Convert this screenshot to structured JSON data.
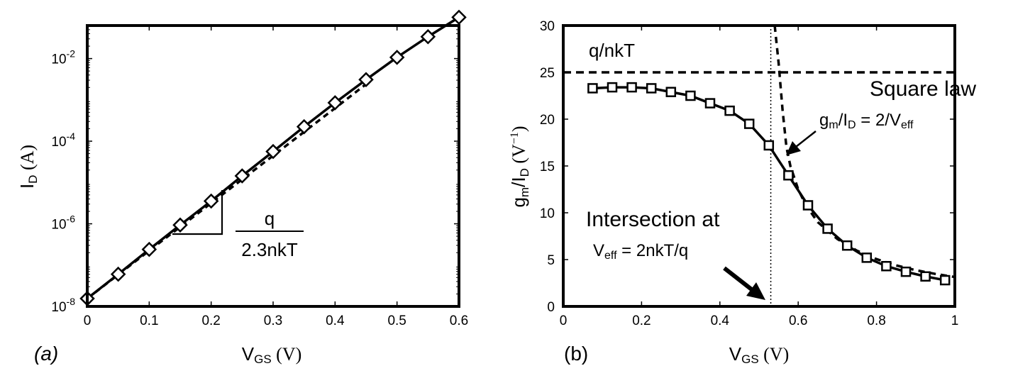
{
  "chart_data": [
    {
      "type": "line",
      "panel_label": "(a)",
      "xlabel": {
        "main": "V",
        "sub": "GS",
        "unit": " (V)"
      },
      "ylabel": {
        "main": "I",
        "sub": "D",
        "unit": " (A)"
      },
      "xlim": [
        0,
        0.6
      ],
      "ylim_log10": [
        -8,
        -1.2
      ],
      "yscale": "log",
      "xticks": [
        "0",
        "0.1",
        "0.2",
        "0.3",
        "0.4",
        "0.5",
        "0.6"
      ],
      "yticks": [
        {
          "base": "10",
          "exp": "-8",
          "log": -8
        },
        {
          "base": "10",
          "exp": "-6",
          "log": -6
        },
        {
          "base": "10",
          "exp": "-4",
          "log": -4
        },
        {
          "base": "10",
          "exp": "-2",
          "log": -2
        }
      ],
      "series": [
        {
          "style": "solid-diamond",
          "x": [
            0,
            0.05,
            0.1,
            0.15,
            0.2,
            0.25,
            0.3,
            0.35,
            0.4,
            0.45,
            0.5,
            0.55,
            0.6
          ],
          "log10_y": [
            -7.81,
            -7.22,
            -6.62,
            -6.03,
            -5.45,
            -4.84,
            -4.25,
            -3.65,
            -3.07,
            -2.51,
            -1.97,
            -1.47,
            -1.0
          ]
        },
        {
          "style": "dashed",
          "x": [
            0,
            0.1,
            0.2,
            0.3,
            0.4,
            0.45
          ],
          "log10_y": [
            -7.81,
            -6.65,
            -5.5,
            -4.35,
            -3.2,
            -2.62
          ]
        }
      ],
      "annotation": {
        "numerator": "q",
        "denominator": "2.3nkT"
      }
    },
    {
      "type": "line",
      "panel_label": "(b)",
      "xlabel": {
        "main": "V",
        "sub": "GS",
        "unit": " (V)"
      },
      "ylabel": {
        "g": "g",
        "gsub": "m",
        "slash": "/I",
        "isub": "D",
        "unit": " (V",
        "sup": "−1",
        "close": ")"
      },
      "xlim": [
        0,
        1
      ],
      "ylim": [
        0,
        30
      ],
      "xticks": [
        "0",
        "0.2",
        "0.4",
        "0.6",
        "0.8",
        "1"
      ],
      "yticks": [
        "0",
        "5",
        "10",
        "15",
        "20",
        "25",
        "30"
      ],
      "series": [
        {
          "style": "solid-square",
          "x": [
            0.075,
            0.125,
            0.175,
            0.225,
            0.275,
            0.325,
            0.375,
            0.425,
            0.475,
            0.525,
            0.575,
            0.625,
            0.675,
            0.725,
            0.775,
            0.825,
            0.875,
            0.925,
            0.975
          ],
          "y": [
            23.3,
            23.4,
            23.4,
            23.3,
            22.9,
            22.5,
            21.7,
            20.9,
            19.5,
            17.2,
            14.0,
            10.8,
            8.3,
            6.5,
            5.2,
            4.3,
            3.7,
            3.2,
            2.8
          ]
        },
        {
          "style": "dashed-square-law",
          "x": [
            0.54,
            0.55,
            0.56,
            0.57,
            0.58,
            0.6,
            0.62,
            0.65,
            0.7,
            0.75,
            0.8,
            0.85,
            0.9,
            0.95,
            1.0
          ],
          "y": [
            30.0,
            26.0,
            21.0,
            17.0,
            15.0,
            12.5,
            10.8,
            9.0,
            7.2,
            5.95,
            5.05,
            4.38,
            3.87,
            3.47,
            3.14
          ]
        }
      ],
      "hline": {
        "y": 25,
        "label": "q/nkT"
      },
      "vline": {
        "x": 0.53
      },
      "annotations": {
        "square_law": "Square law",
        "square_eq": {
          "g": "g",
          "gsub": "m",
          "mid": "/I",
          "isub": "D",
          "rhs": " = 2/V",
          "vsub": "eff"
        },
        "intersection": "Intersection at",
        "intersection_eq": {
          "v": "V",
          "vsub": "eff",
          "rhs": " = 2nkT/q"
        }
      }
    }
  ]
}
